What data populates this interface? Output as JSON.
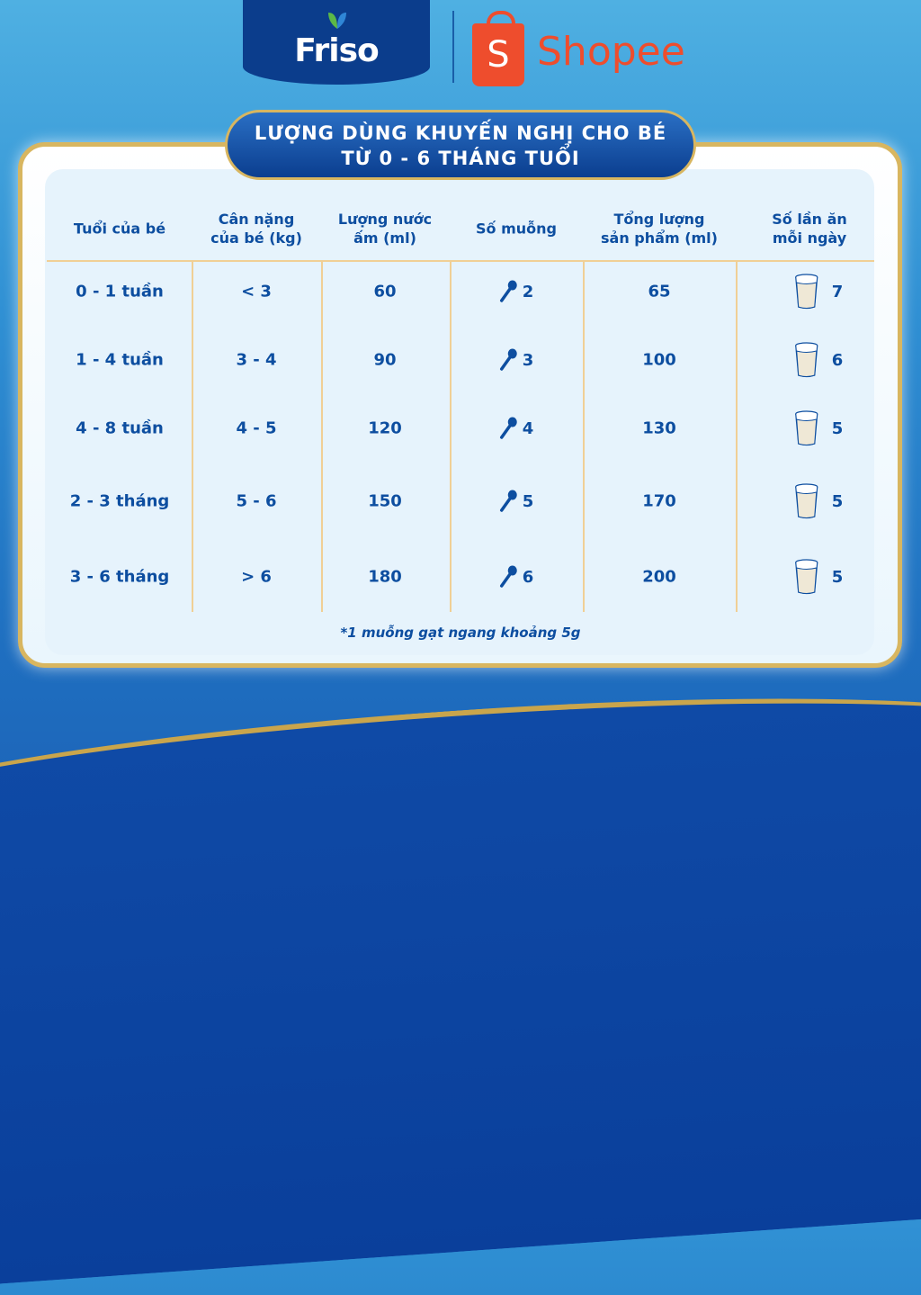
{
  "brand": {
    "friso": "Friso",
    "shopee": "Shopee",
    "shopee_bag_letter": "S"
  },
  "title": {
    "line1": "LƯỢNG DÙNG KHUYẾN NGHỊ CHO BÉ",
    "line2": "TỪ 0 - 6 THÁNG TUỔI"
  },
  "table": {
    "headers": [
      [
        "Tuổi của bé",
        ""
      ],
      [
        "Cân nặng",
        "của bé (kg)"
      ],
      [
        "Lượng nước",
        "ấm (ml)"
      ],
      [
        "Số muỗng",
        ""
      ],
      [
        "Tổng lượng",
        "sản phẩm (ml)"
      ],
      [
        "Số lần ăn",
        "mỗi ngày"
      ]
    ],
    "rows": [
      {
        "age": "0 - 1 tuần",
        "weight": "< 3",
        "water": "60",
        "scoops": "2",
        "total": "65",
        "feeds": "7"
      },
      {
        "age": "1 - 4 tuần",
        "weight": "3 - 4",
        "water": "90",
        "scoops": "3",
        "total": "100",
        "feeds": "6"
      },
      {
        "age": "4 - 8 tuần",
        "weight": "4 - 5",
        "water": "120",
        "scoops": "4",
        "total": "130",
        "feeds": "5"
      },
      {
        "age": "2 - 3 tháng",
        "weight": "5 - 6",
        "water": "150",
        "scoops": "5",
        "total": "170",
        "feeds": "5"
      },
      {
        "age": "3 - 6 tháng",
        "weight": "> 6",
        "water": "180",
        "scoops": "6",
        "total": "200",
        "feeds": "5"
      }
    ],
    "scoop_icon": "spoon-icon",
    "feed_icon": "milk-glass-icon"
  },
  "footnote": "*1 muỗng gạt ngang khoảng 5g",
  "colors": {
    "text": "#0d4ea0",
    "gold": "#d8b660",
    "shopee": "#ee4d2d",
    "friso": "#0b3d8c"
  }
}
